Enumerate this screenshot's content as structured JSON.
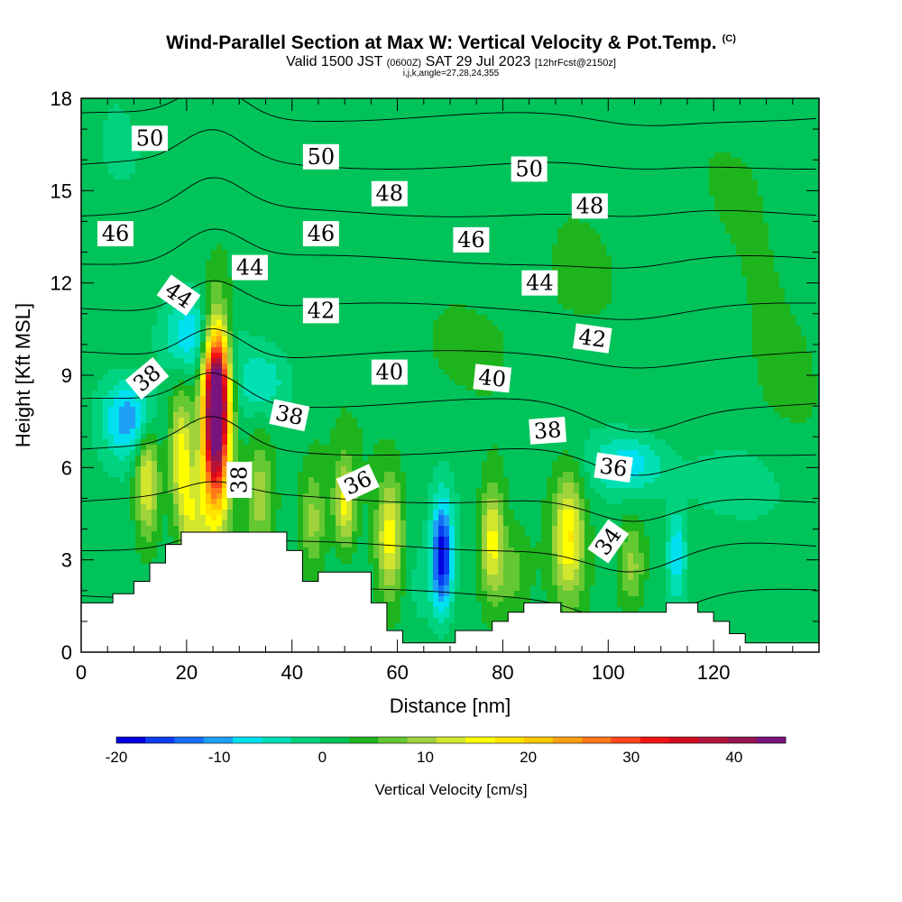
{
  "header": {
    "title": "Wind-Parallel Section at Max W: Vertical Velocity & Pot.Temp.",
    "copyright": "(C)",
    "valid_prefix": "Valid 1500 JST",
    "valid_utc": "(0600Z)",
    "valid_date": "SAT 29 Jul 2023",
    "forecast": "[12hrFcst@2150z]",
    "params": "i,j,k,angle=27,28,24,355"
  },
  "chart_data": {
    "type": "heatmap",
    "xlabel": "Distance [nm]",
    "ylabel": "Height [Kft MSL]",
    "xlim": [
      0,
      140
    ],
    "ylim": [
      0,
      18
    ],
    "x_ticks": [
      "0",
      "20",
      "40",
      "60",
      "80",
      "100",
      "120"
    ],
    "y_ticks": [
      "0",
      "3",
      "6",
      "9",
      "12",
      "15",
      "18"
    ],
    "colorbar": {
      "label": "Vertical Velocity [cm/s]",
      "range": [
        -20,
        45
      ],
      "ticks": [
        "-20",
        "-10",
        "0",
        "10",
        "20",
        "30",
        "40"
      ],
      "colors": [
        "#0000e0",
        "#0a3cf0",
        "#1470f5",
        "#1ea0f5",
        "#00e0f0",
        "#00e0b4",
        "#00d27d",
        "#00c35a",
        "#1eb41e",
        "#64c832",
        "#a0d23c",
        "#d2e62d",
        "#ffff00",
        "#ffe600",
        "#ffc800",
        "#ffa014",
        "#ff7819",
        "#ff461e",
        "#f01414",
        "#d20a1e",
        "#b4143c",
        "#961450",
        "#78147d"
      ]
    },
    "terrain": [
      [
        0,
        1.6
      ],
      [
        6,
        1.6
      ],
      [
        6,
        1.9
      ],
      [
        10,
        1.9
      ],
      [
        10,
        2.3
      ],
      [
        13,
        2.3
      ],
      [
        13,
        2.9
      ],
      [
        16,
        2.9
      ],
      [
        16,
        3.5
      ],
      [
        19,
        3.5
      ],
      [
        19,
        3.9
      ],
      [
        39,
        3.9
      ],
      [
        39,
        3.3
      ],
      [
        42,
        3.3
      ],
      [
        42,
        2.3
      ],
      [
        45,
        2.3
      ],
      [
        45,
        2.6
      ],
      [
        55,
        2.6
      ],
      [
        55,
        1.6
      ],
      [
        58,
        1.6
      ],
      [
        58,
        0.7
      ],
      [
        61,
        0.7
      ],
      [
        61,
        0.3
      ],
      [
        71,
        0.3
      ],
      [
        71,
        0.7
      ],
      [
        78,
        0.7
      ],
      [
        78,
        1.0
      ],
      [
        81,
        1.0
      ],
      [
        81,
        1.3
      ],
      [
        84,
        1.3
      ],
      [
        84,
        1.6
      ],
      [
        91,
        1.6
      ],
      [
        91,
        1.3
      ],
      [
        111,
        1.3
      ],
      [
        111,
        1.6
      ],
      [
        117,
        1.6
      ],
      [
        117,
        1.3
      ],
      [
        120,
        1.3
      ],
      [
        120,
        1.0
      ],
      [
        123,
        1.0
      ],
      [
        123,
        0.6
      ],
      [
        126,
        0.6
      ],
      [
        126,
        0.3
      ],
      [
        140,
        0.3
      ]
    ],
    "contour_labels": [
      {
        "text": "50",
        "x": 13,
        "y": 16.7,
        "rot": 0
      },
      {
        "text": "50",
        "x": 45.5,
        "y": 16.1,
        "rot": 0
      },
      {
        "text": "50",
        "x": 85,
        "y": 15.7,
        "rot": 0
      },
      {
        "text": "48",
        "x": 58.5,
        "y": 14.9,
        "rot": 0
      },
      {
        "text": "48",
        "x": 96.5,
        "y": 14.5,
        "rot": 0
      },
      {
        "text": "46",
        "x": 6.5,
        "y": 13.6,
        "rot": 0
      },
      {
        "text": "46",
        "x": 45.5,
        "y": 13.6,
        "rot": 0
      },
      {
        "text": "46",
        "x": 74,
        "y": 13.4,
        "rot": 0
      },
      {
        "text": "44",
        "x": 32,
        "y": 12.5,
        "rot": 0
      },
      {
        "text": "44",
        "x": 18.5,
        "y": 11.6,
        "rot": 35
      },
      {
        "text": "44",
        "x": 87,
        "y": 12.0,
        "rot": 0
      },
      {
        "text": "42",
        "x": 45.5,
        "y": 11.1,
        "rot": 0
      },
      {
        "text": "42",
        "x": 97,
        "y": 10.2,
        "rot": 8
      },
      {
        "text": "40",
        "x": 58.5,
        "y": 9.1,
        "rot": 0
      },
      {
        "text": "40",
        "x": 78,
        "y": 8.9,
        "rot": 6
      },
      {
        "text": "38",
        "x": 12.5,
        "y": 8.9,
        "rot": -40
      },
      {
        "text": "38",
        "x": 39.5,
        "y": 7.7,
        "rot": 12
      },
      {
        "text": "38",
        "x": 88.5,
        "y": 7.2,
        "rot": -4
      },
      {
        "text": "38",
        "x": 30,
        "y": 5.6,
        "rot": -90
      },
      {
        "text": "36",
        "x": 52.5,
        "y": 5.5,
        "rot": -25
      },
      {
        "text": "36",
        "x": 101,
        "y": 6.0,
        "rot": 8
      },
      {
        "text": "34",
        "x": 100,
        "y": 3.6,
        "rot": -55
      }
    ],
    "w_features": [
      {
        "x": 25.5,
        "y": 7.5,
        "sx": 1.8,
        "sy": 2.1,
        "w": 45
      },
      {
        "x": 26,
        "y": 8.8,
        "sx": 1.5,
        "sy": 1.3,
        "w": 15
      },
      {
        "x": 19,
        "y": 6.5,
        "sx": 1.5,
        "sy": 1.3,
        "w": 14
      },
      {
        "x": 12.5,
        "y": 5.6,
        "sx": 1.6,
        "sy": 1.3,
        "w": 14
      },
      {
        "x": 21,
        "y": 4.4,
        "sx": 1.8,
        "sy": 1.0,
        "w": 10
      },
      {
        "x": 34,
        "y": 5.2,
        "sx": 1.8,
        "sy": 1.4,
        "w": 8
      },
      {
        "x": 44,
        "y": 4.2,
        "sx": 1.7,
        "sy": 1.2,
        "w": 8
      },
      {
        "x": 50,
        "y": 4.8,
        "sx": 1.4,
        "sy": 1.0,
        "w": 13
      },
      {
        "x": 58.5,
        "y": 3.7,
        "sx": 1.7,
        "sy": 1.3,
        "w": 14
      },
      {
        "x": 68.5,
        "y": 3.1,
        "sx": 1.4,
        "sy": 1.3,
        "w": -20
      },
      {
        "x": 64.5,
        "y": 2.0,
        "sx": 2.2,
        "sy": 1.2,
        "w": -3
      },
      {
        "x": 78,
        "y": 3.6,
        "sx": 1.6,
        "sy": 1.3,
        "w": 14
      },
      {
        "x": 82,
        "y": 2.5,
        "sx": 1.8,
        "sy": 0.9,
        "w": 5
      },
      {
        "x": 92.5,
        "y": 3.8,
        "sx": 2.0,
        "sy": 1.4,
        "w": 15
      },
      {
        "x": 104.5,
        "y": 2.8,
        "sx": 1.7,
        "sy": 1.0,
        "w": 8
      },
      {
        "x": 113,
        "y": 3.2,
        "sx": 1.3,
        "sy": 1.0,
        "w": -10
      },
      {
        "x": 9,
        "y": 7.6,
        "sx": 3.5,
        "sy": 0.9,
        "w": -12
      },
      {
        "x": 21,
        "y": 10.3,
        "sx": 4.5,
        "sy": 0.9,
        "w": -10
      },
      {
        "x": 34,
        "y": 8.8,
        "sx": 4.0,
        "sy": 0.8,
        "w": -6
      },
      {
        "x": 104,
        "y": 6.1,
        "sx": 5.0,
        "sy": 0.7,
        "w": -9
      },
      {
        "x": 122,
        "y": 5.5,
        "sx": 7.0,
        "sy": 0.9,
        "w": -4
      },
      {
        "x": 5,
        "y": 16.5,
        "sx": 5.0,
        "sy": 2.0,
        "w": -2
      },
      {
        "x": 60,
        "y": 10.0,
        "sx": 10.0,
        "sy": 1.5,
        "w": 1.0
      },
      {
        "x": 88,
        "y": 11.5,
        "sx": 8.0,
        "sy": 2.5,
        "w": 1.0
      },
      {
        "x": 130,
        "y": 12.0,
        "sx": 6.0,
        "sy": 4.0,
        "w": 1.2
      }
    ]
  }
}
